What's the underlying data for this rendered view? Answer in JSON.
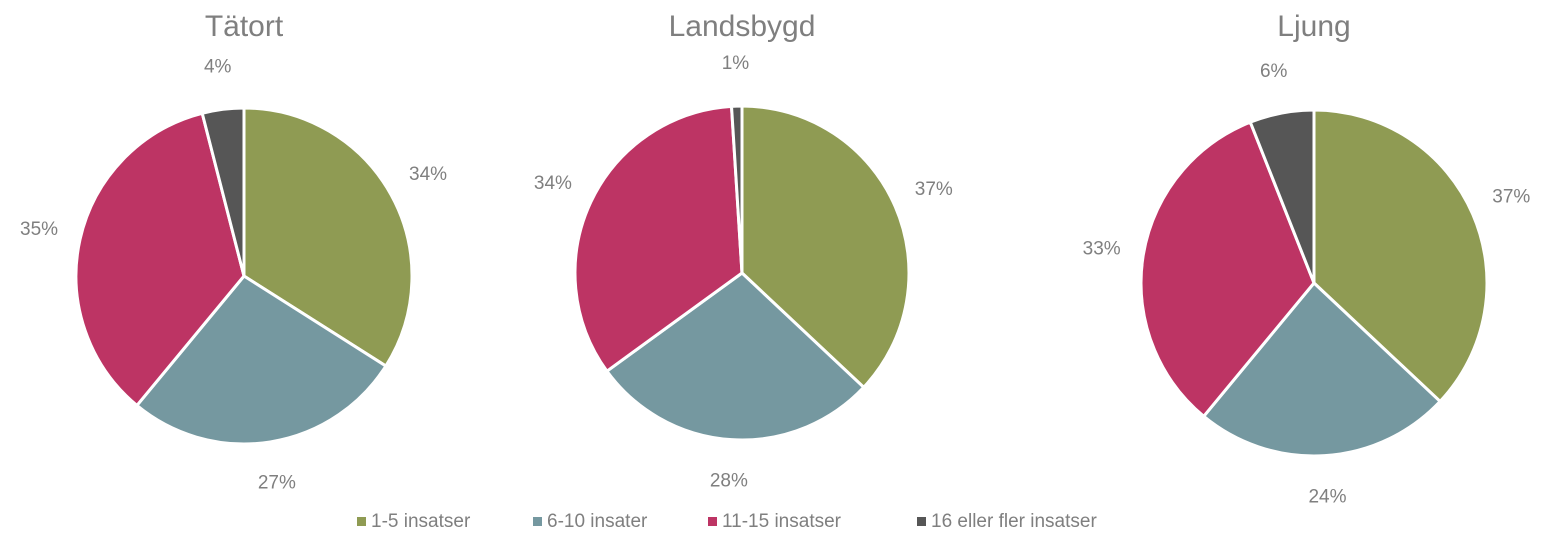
{
  "legend": {
    "labels": [
      "1-5 insatser",
      "6-10 insater",
      "11-15 insatser",
      "16 eller fler insatser"
    ],
    "colors": [
      "#8f9b53",
      "#7598a0",
      "#bd3464",
      "#565656"
    ]
  },
  "chart_data": [
    {
      "type": "pie",
      "title": "Tätort",
      "values": [
        34,
        27,
        35,
        4
      ],
      "value_labels": [
        "34%",
        "27%",
        "35%",
        "4%"
      ]
    },
    {
      "type": "pie",
      "title": "Landsbygd",
      "values": [
        37,
        28,
        34,
        1
      ],
      "value_labels": [
        "37%",
        "28%",
        "34%",
        "1%"
      ]
    },
    {
      "type": "pie",
      "title": "Ljung",
      "values": [
        37,
        24,
        33,
        6
      ],
      "value_labels": [
        "37%",
        "24%",
        "33%",
        "6%"
      ]
    }
  ]
}
